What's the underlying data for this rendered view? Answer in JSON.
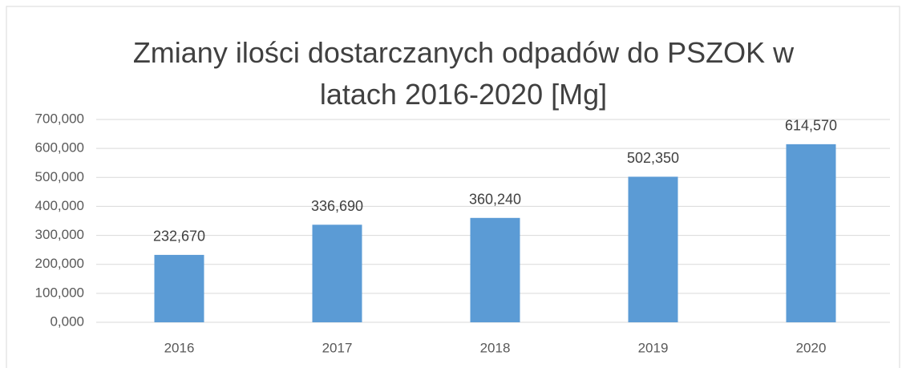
{
  "chart_data": {
    "type": "bar",
    "title": "Zmiany ilości dostarczanych odpadów do PSZOK w latach 2016-2020 [Mg]",
    "categories": [
      "2016",
      "2017",
      "2018",
      "2019",
      "2020"
    ],
    "values": [
      232.67,
      336.69,
      360.24,
      502.35,
      614.57
    ],
    "value_labels": [
      "232,670",
      "336,690",
      "360,240",
      "502,350",
      "614,570"
    ],
    "color": "#5b9bd5",
    "ylim": [
      0,
      700
    ],
    "yticks": [
      {
        "value": 0,
        "label": "0,000"
      },
      {
        "value": 100,
        "label": "100,000"
      },
      {
        "value": 200,
        "label": "200,000"
      },
      {
        "value": 300,
        "label": "300,000"
      },
      {
        "value": 400,
        "label": "400,000"
      },
      {
        "value": 500,
        "label": "500,000"
      },
      {
        "value": 600,
        "label": "600,000"
      },
      {
        "value": 700,
        "label": "700,000"
      }
    ],
    "grid": true
  }
}
